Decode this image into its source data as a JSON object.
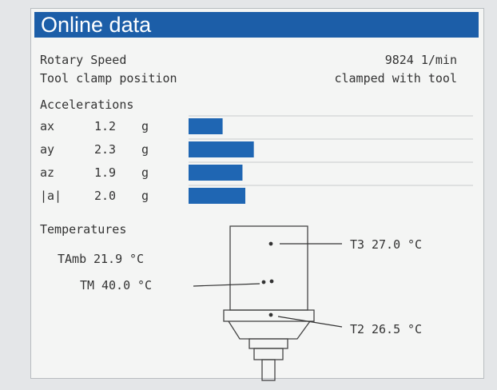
{
  "header": {
    "title": "Online data"
  },
  "status": {
    "rows": [
      {
        "label": "Rotary Speed",
        "value": "9824 1/min"
      },
      {
        "label": "Tool clamp position",
        "value": "clamped with tool"
      }
    ]
  },
  "accelerations": {
    "title": "Accelerations",
    "labels": [
      "ax",
      "ay",
      "az",
      "|a|"
    ],
    "values": [
      1.2,
      2.3,
      1.9,
      2
    ],
    "value_labels": [
      "1.2",
      "2.3",
      "1.9",
      "2.0"
    ],
    "unit": "g",
    "color": "#1f66b3"
  },
  "temperatures": {
    "title": "Temperatures",
    "items": [
      {
        "name": "TAmb",
        "value": "21.9",
        "unit": "°C"
      },
      {
        "name": "TM",
        "value": "40.0",
        "unit": "°C"
      },
      {
        "name": "T3",
        "value": "27.0",
        "unit": "°C"
      },
      {
        "name": "T2",
        "value": "26.5",
        "unit": "°C"
      }
    ]
  }
}
